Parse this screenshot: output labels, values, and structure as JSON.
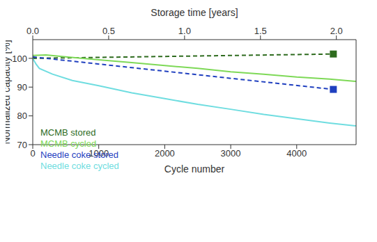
{
  "chart_data": {
    "type": "line",
    "x_label": "Cycle number",
    "x2_label": "Storage time [years]",
    "y_label": "Normalized capacity [%]",
    "xlim": [
      0,
      4900
    ],
    "xticks": [
      0,
      1000,
      2000,
      3000,
      4000
    ],
    "x2lim": [
      0,
      2.13
    ],
    "x2ticks": [
      {
        "value": 0,
        "label": "0.0"
      },
      {
        "value": 0.5,
        "label": "0.5"
      },
      {
        "value": 1,
        "label": "1.0"
      },
      {
        "value": 1.5,
        "label": "1.5"
      },
      {
        "value": 2,
        "label": "2.0"
      }
    ],
    "ylim": [
      70,
      106.5
    ],
    "yticks": [
      70,
      80,
      90,
      100
    ],
    "legend": "lower left",
    "grid": false,
    "series": [
      {
        "name": "MCMB stored",
        "color": "#2e6b1e",
        "axis": "x2",
        "line_style": "dashed",
        "marker": "square",
        "x": [
          0,
          1.98
        ],
        "values": [
          100,
          101.5
        ]
      },
      {
        "name": "MCMB cycled",
        "color": "#7ed957",
        "axis": "x",
        "line_style": "solid",
        "marker": "none",
        "x": [
          0,
          200,
          500,
          1000,
          1500,
          2000,
          2500,
          3000,
          3500,
          4000,
          4500,
          4900
        ],
        "values": [
          101,
          101.2,
          100.5,
          99.5,
          98.5,
          97.5,
          96.5,
          95.3,
          94.5,
          93.5,
          92.8,
          92
        ]
      },
      {
        "name": "Needle coke stored",
        "color": "#1f3fbf",
        "axis": "x2",
        "line_style": "dashed",
        "marker": "square",
        "x": [
          0,
          1.98
        ],
        "values": [
          100.5,
          89.2
        ]
      },
      {
        "name": "Needle coke cycled",
        "color": "#6fdde0",
        "axis": "x",
        "line_style": "solid",
        "marker": "none",
        "x": [
          0,
          50,
          100,
          300,
          600,
          1000,
          1500,
          2000,
          2500,
          3000,
          3500,
          4000,
          4500,
          4900
        ],
        "values": [
          100,
          98,
          96.5,
          94.5,
          92.3,
          90.5,
          88,
          86,
          84,
          82.3,
          80.5,
          79,
          77.5,
          76.5
        ]
      }
    ]
  }
}
